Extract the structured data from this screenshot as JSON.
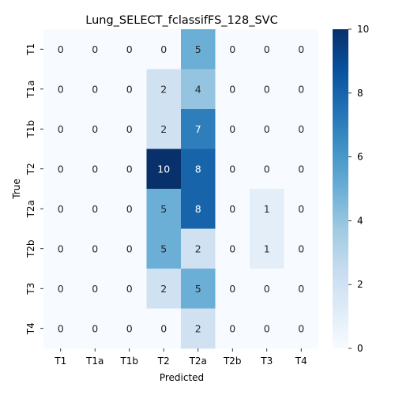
{
  "chart_data": {
    "type": "heatmap",
    "title": "Lung_SELECT_fclassifFS_128_SVC",
    "xlabel": "Predicted",
    "ylabel": "True",
    "x_categories": [
      "T1",
      "T1a",
      "T1b",
      "T2",
      "T2a",
      "T2b",
      "T3",
      "T4"
    ],
    "y_categories": [
      "T1",
      "T1a",
      "T1b",
      "T2",
      "T2a",
      "T2b",
      "T3",
      "T4"
    ],
    "matrix": [
      [
        0,
        0,
        0,
        0,
        5,
        0,
        0,
        0
      ],
      [
        0,
        0,
        0,
        2,
        4,
        0,
        0,
        0
      ],
      [
        0,
        0,
        0,
        2,
        7,
        0,
        0,
        0
      ],
      [
        0,
        0,
        0,
        10,
        8,
        0,
        0,
        0
      ],
      [
        0,
        0,
        0,
        5,
        8,
        0,
        1,
        0
      ],
      [
        0,
        0,
        0,
        5,
        2,
        0,
        1,
        0
      ],
      [
        0,
        0,
        0,
        2,
        5,
        0,
        0,
        0
      ],
      [
        0,
        0,
        0,
        0,
        2,
        0,
        0,
        0
      ]
    ],
    "colorbar": {
      "min": 0,
      "max": 10,
      "ticks": [
        "0",
        "2",
        "4",
        "6",
        "8",
        "10"
      ],
      "colormap": "Blues"
    }
  }
}
